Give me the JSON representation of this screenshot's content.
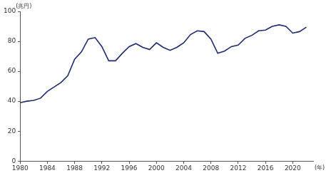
{
  "chart_data": {
    "type": "line",
    "y_label": "(兆円)",
    "x_label": "(年)",
    "x": [
      1980,
      1981,
      1982,
      1983,
      1984,
      1985,
      1986,
      1987,
      1988,
      1989,
      1990,
      1991,
      1992,
      1993,
      1994,
      1995,
      1996,
      1997,
      1998,
      1999,
      2000,
      2001,
      2002,
      2003,
      2004,
      2005,
      2006,
      2007,
      2008,
      2009,
      2010,
      2011,
      2012,
      2013,
      2014,
      2015,
      2016,
      2017,
      2018,
      2019,
      2020,
      2021,
      2022
    ],
    "values": [
      39,
      40,
      40.5,
      42,
      46.5,
      49.5,
      52.5,
      57,
      68,
      73,
      81.5,
      82.5,
      76.5,
      67,
      67,
      72,
      76.5,
      78.5,
      76,
      74.5,
      79,
      76,
      74,
      76,
      79,
      84.5,
      87,
      86.5,
      81.5,
      72,
      73.5,
      76.5,
      77.5,
      82,
      84,
      87,
      87.5,
      90,
      91,
      90,
      85.5,
      86.5,
      89.5
    ],
    "color": "#1f2a6b",
    "xlim": [
      1980,
      2023
    ],
    "xticks": [
      1980,
      1984,
      1988,
      1992,
      1996,
      2000,
      2004,
      2008,
      2012,
      2016,
      2020
    ],
    "ylim": [
      0,
      100
    ],
    "yticks": [
      0,
      20,
      40,
      60,
      80,
      100
    ],
    "grid": false
  }
}
